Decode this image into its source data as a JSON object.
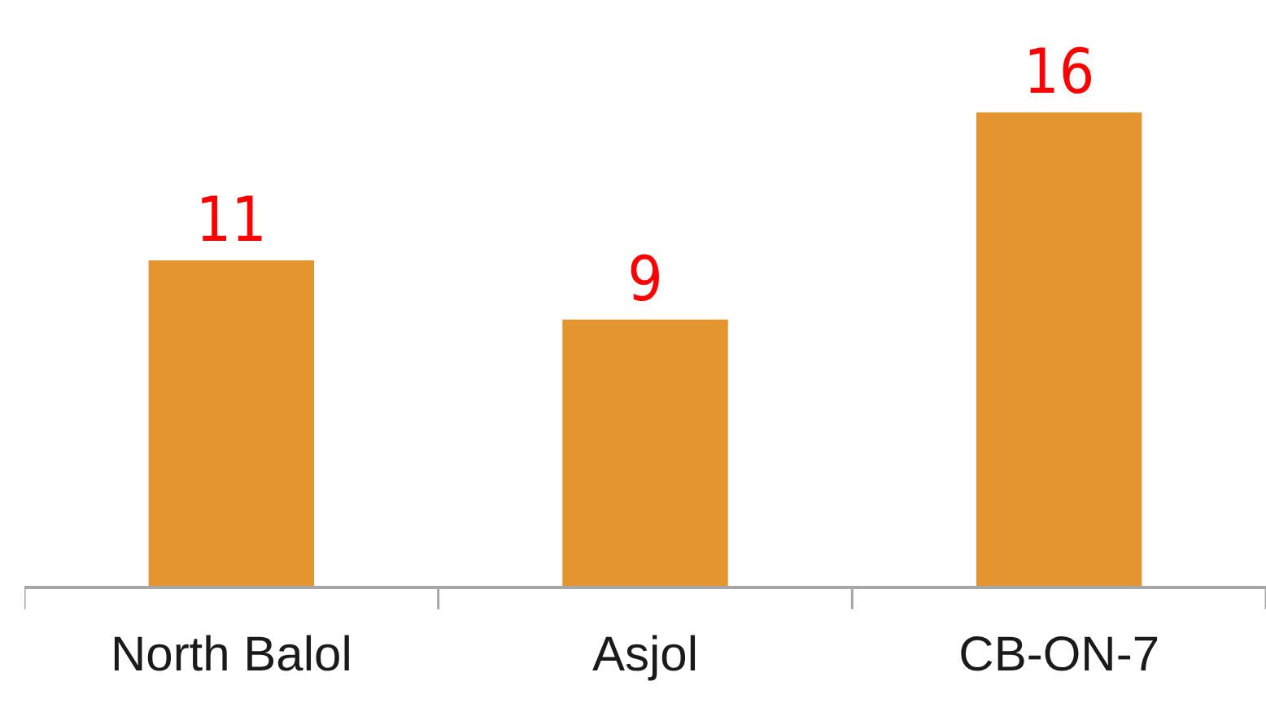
{
  "chart_data": {
    "type": "bar",
    "categories": [
      "North Balol",
      "Asjol",
      "CB-ON-7"
    ],
    "values": [
      11,
      9,
      16
    ],
    "color": "#e5952f",
    "data_labels": true,
    "ylim": [
      0,
      19.8
    ],
    "tick_labels": "x"
  }
}
